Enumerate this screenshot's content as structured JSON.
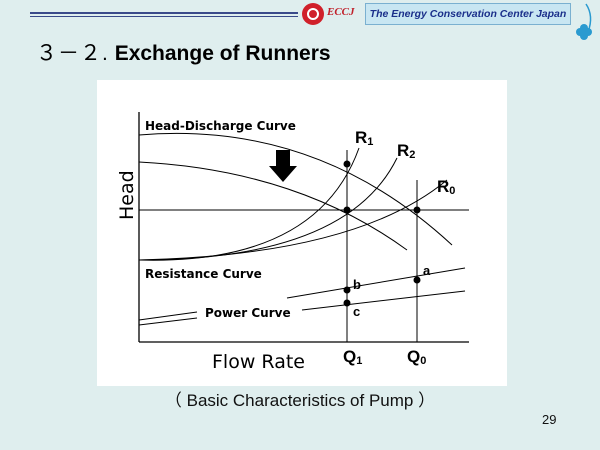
{
  "header": {
    "org_abbrev": "ECCJ",
    "org_name": "The Energy Conservation Center Japan"
  },
  "slide": {
    "section_number": "３－２.",
    "title": "Exchange of Runners",
    "caption": "（ Basic Characteristics of Pump ）",
    "page_number": "29"
  },
  "diagram": {
    "x_axis_label": "Flow Rate",
    "y_axis_label": "Head",
    "curve_labels": {
      "head_discharge": "Head-Discharge Curve",
      "resistance": "Resistance Curve",
      "power": "Power Curve"
    },
    "point_labels": {
      "r1": "R",
      "r1_sub": "1",
      "r2": "R",
      "r2_sub": "2",
      "r0": "R",
      "r0_sub": "0",
      "a": "a",
      "b": "b",
      "c": "c",
      "q1": "Q",
      "q1_sub": "1",
      "q0": "Q",
      "q0_sub": "0"
    }
  },
  "colors": {
    "background": "#dfeeee",
    "banner": "#c8e6f2",
    "banner_text": "#1a2f8a",
    "logo_red": "#d0202a"
  }
}
